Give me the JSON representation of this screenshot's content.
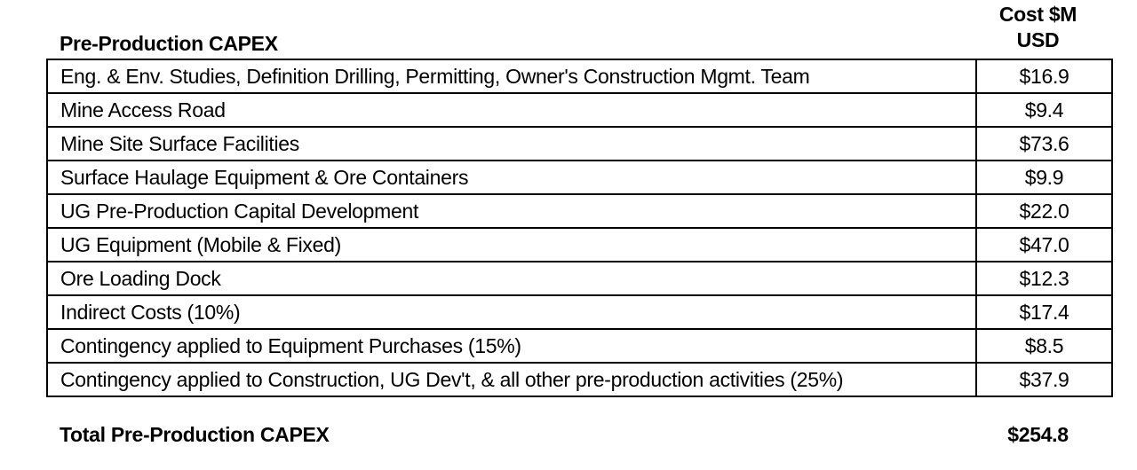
{
  "header": {
    "label": "Pre-Production CAPEX",
    "cost_line1": "Cost $M",
    "cost_line2": "USD"
  },
  "rows": [
    {
      "item": "Eng. & Env. Studies, Definition Drilling, Permitting, Owner's Construction Mgmt. Team",
      "value": "$16.9"
    },
    {
      "item": "Mine Access Road",
      "value": "$9.4"
    },
    {
      "item": "Mine Site Surface Facilities",
      "value": "$73.6"
    },
    {
      "item": "Surface Haulage Equipment & Ore Containers",
      "value": "$9.9"
    },
    {
      "item": "UG Pre-Production Capital Development",
      "value": "$22.0"
    },
    {
      "item": "UG Equipment (Mobile & Fixed)",
      "value": "$47.0"
    },
    {
      "item": "Ore Loading Dock",
      "value": "$12.3"
    },
    {
      "item": "Indirect Costs (10%)",
      "value": "$17.4"
    },
    {
      "item": "Contingency applied to Equipment Purchases (15%)",
      "value": "$8.5"
    },
    {
      "item": "Contingency applied to Construction, UG Dev't, & all other pre-production activities (25%)",
      "value": "$37.9"
    }
  ],
  "total": {
    "label": "Total Pre-Production CAPEX",
    "value": "$254.8"
  }
}
